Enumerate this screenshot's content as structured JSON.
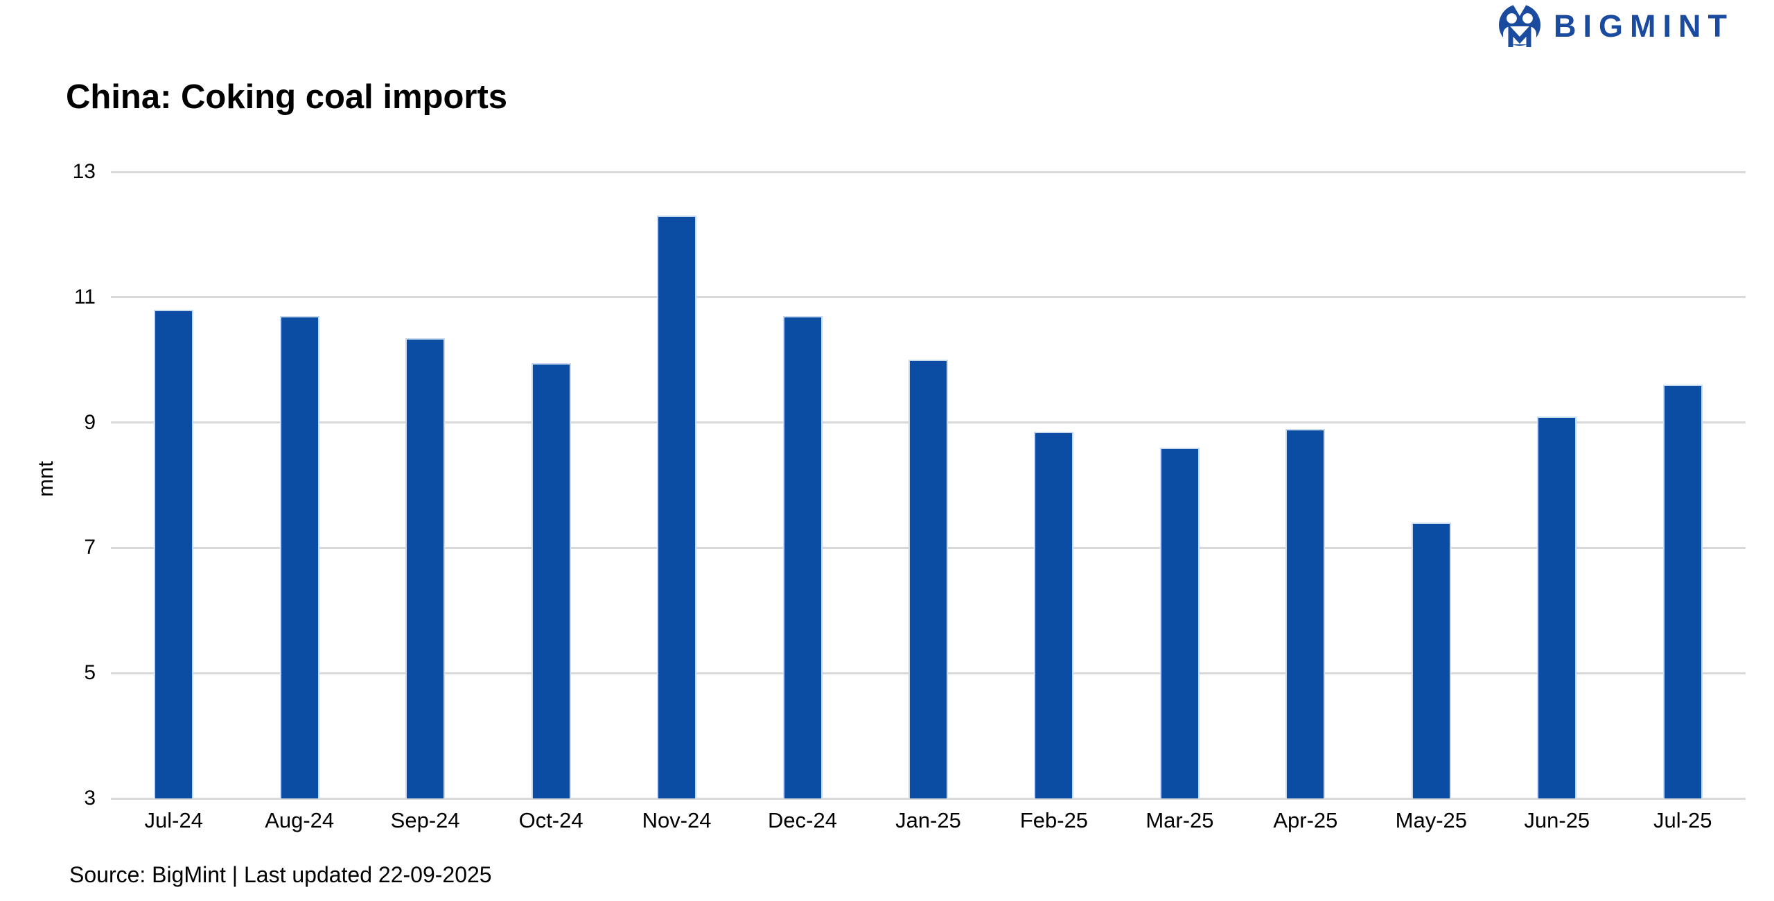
{
  "logo": {
    "text": "BIGMINT",
    "color": "#1a4b9e",
    "icon": "bigmint-owl-icon"
  },
  "footer": {
    "source": "Source: BigMint | Last updated 22-09-2025"
  },
  "chart_data": {
    "type": "bar",
    "title": "China: Coking coal imports",
    "xlabel": "",
    "ylabel": "mnt",
    "categories": [
      "Jul-24",
      "Aug-24",
      "Sep-24",
      "Oct-24",
      "Nov-24",
      "Dec-24",
      "Jan-25",
      "Feb-25",
      "Mar-25",
      "Apr-25",
      "May-25",
      "Jun-25",
      "Jul-25"
    ],
    "values": [
      10.8,
      10.7,
      10.35,
      9.95,
      12.3,
      10.7,
      10.0,
      8.85,
      8.6,
      8.9,
      7.4,
      9.1,
      9.6
    ],
    "ylim": [
      3,
      13
    ],
    "yticks": [
      3,
      5,
      7,
      9,
      11,
      13
    ],
    "grid": "horizontal",
    "gridline_color": "#d9d9d9",
    "bar_color": "#0b4da2",
    "legend": "none"
  }
}
